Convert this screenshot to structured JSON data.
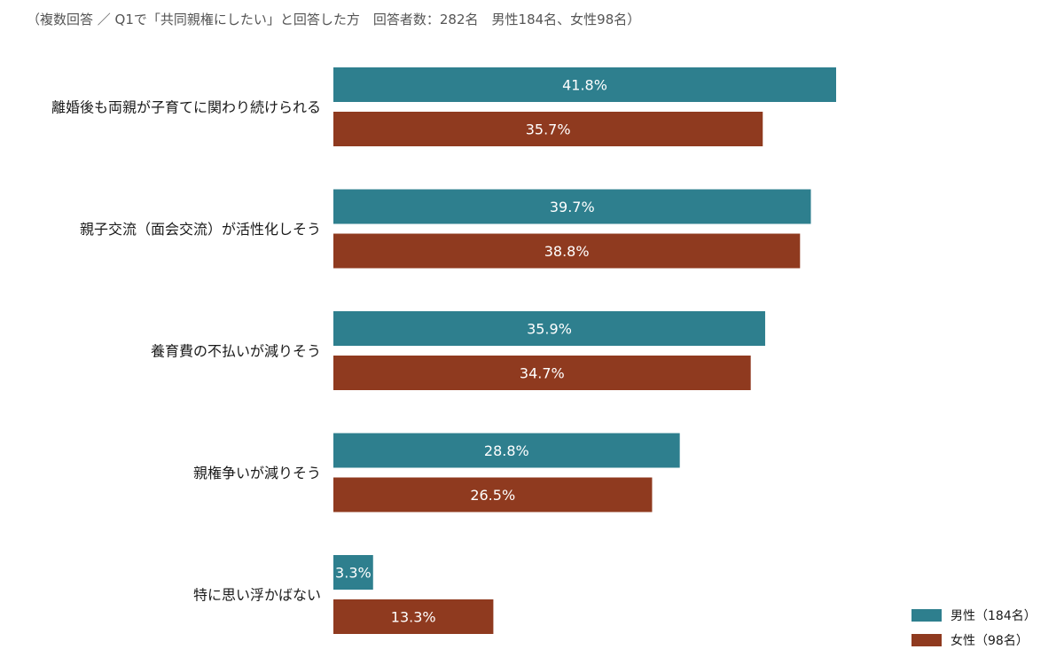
{
  "chart_data": {
    "type": "bar",
    "orientation": "horizontal",
    "subtitle": "（複数回答 ／ Q1で「共同親権にしたい」と回答した方　回答者数：282名　男性184名、女性98名）",
    "categories": [
      "離婚後も両親が子育てに関わり続けられる",
      "親子交流（面会交流）が活性化しそう",
      "養育費の不払いが減りそう",
      "親権争いが減りそう",
      "特に思い浮かばない"
    ],
    "series": [
      {
        "name": "男性（184名）",
        "color": "#2e7f8e",
        "values": [
          41.8,
          39.7,
          35.9,
          28.8,
          3.3
        ],
        "labels": [
          "41.8%",
          "39.7%",
          "35.9%",
          "28.8%",
          "3.3%"
        ]
      },
      {
        "name": "女性（98名）",
        "color": "#8f3a1f",
        "values": [
          35.7,
          38.8,
          34.7,
          26.5,
          13.3
        ],
        "labels": [
          "35.7%",
          "38.8%",
          "34.7%",
          "26.5%",
          "13.3%"
        ]
      }
    ],
    "xlim": [
      0,
      45
    ],
    "unit": "%",
    "grid": false,
    "legend_position": "bottom-right"
  }
}
